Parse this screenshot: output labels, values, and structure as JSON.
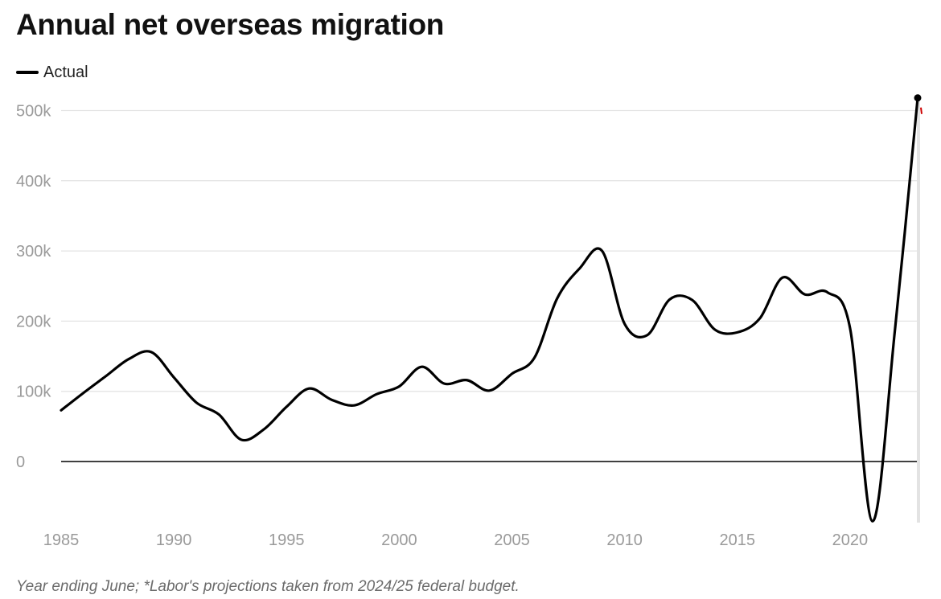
{
  "title": "Annual net overseas migration",
  "legend": {
    "actual_label": "Actual"
  },
  "footnote": "Year ending June; *Labor's projections taken from 2024/25 federal budget.",
  "colors": {
    "actual_line": "#000000",
    "projection_marker": "#cc0000",
    "gridline": "#e3e3e3",
    "zero_line": "#000000",
    "tick_text": "#9a9a9a"
  },
  "chart_data": {
    "type": "line",
    "title": "Annual net overseas migration",
    "xlabel": "",
    "ylabel": "",
    "xlim": [
      1985,
      2023
    ],
    "ylim": [
      -87000,
      520000
    ],
    "x_ticks": [
      1985,
      1990,
      1995,
      2000,
      2005,
      2010,
      2015,
      2020
    ],
    "x_tick_labels": [
      "1985",
      "1990",
      "1995",
      "2000",
      "2005",
      "2010",
      "2015",
      "2020"
    ],
    "y_ticks": [
      0,
      100000,
      200000,
      300000,
      400000,
      500000
    ],
    "y_tick_labels": [
      "0",
      "100k",
      "200k",
      "300k",
      "400k",
      "500k"
    ],
    "grid": true,
    "legend_position": "top-left",
    "series": [
      {
        "name": "Actual",
        "x": [
          1985,
          1986,
          1987,
          1988,
          1989,
          1990,
          1991,
          1992,
          1993,
          1994,
          1995,
          1996,
          1997,
          1998,
          1999,
          2000,
          2001,
          2002,
          2003,
          2004,
          2005,
          2006,
          2007,
          2008,
          2009,
          2010,
          2011,
          2012,
          2013,
          2014,
          2015,
          2016,
          2017,
          2018,
          2019,
          2020,
          2021,
          2022,
          2023
        ],
        "values": [
          73000,
          98000,
          122000,
          146000,
          156000,
          120000,
          84000,
          67000,
          31000,
          46000,
          78000,
          104000,
          88000,
          80000,
          96000,
          107000,
          135000,
          111000,
          116000,
          101000,
          125000,
          148000,
          232000,
          275000,
          300000,
          196000,
          180000,
          231000,
          230000,
          188000,
          184000,
          204000,
          262000,
          238000,
          241000,
          190000,
          -85000,
          190000,
          518000
        ]
      }
    ]
  }
}
